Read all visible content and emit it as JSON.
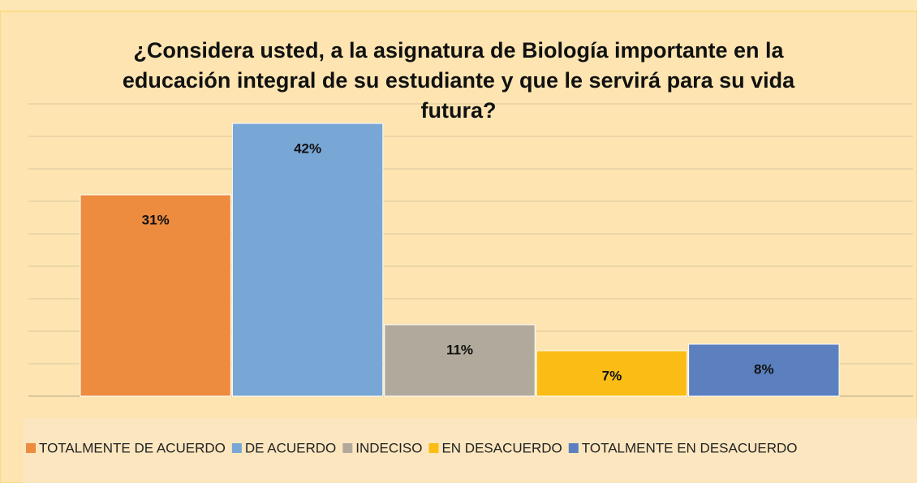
{
  "chart_data": {
    "type": "bar",
    "title": "¿Considera usted, a la asignatura de Biología importante en la educación integral de su estudiante y que le servirá para su vida futura?",
    "series": [
      {
        "name": "TOTALMENTE DE ACUERDO",
        "color": "#ed8b3f",
        "values": [
          31
        ],
        "value_labels": [
          "31%"
        ]
      },
      {
        "name": "DE ACUERDO",
        "color": "#78a7d5",
        "values": [
          42
        ],
        "value_labels": [
          "42%"
        ]
      },
      {
        "name": "INDECISO",
        "color": "#b1aa9c",
        "values": [
          11
        ],
        "value_labels": [
          "11%"
        ]
      },
      {
        "name": "EN DESACUERDO",
        "color": "#fbbd15",
        "values": [
          7
        ],
        "value_labels": [
          "7%"
        ]
      },
      {
        "name": "TOTALMENTE EN DESACUERDO",
        "color": "#5c80bf",
        "values": [
          8
        ],
        "value_labels": [
          "8%"
        ]
      }
    ],
    "ylim": [
      0,
      45
    ],
    "yticks": [
      0,
      5,
      10,
      15,
      20,
      25,
      30,
      35,
      40,
      45
    ],
    "grid": true,
    "legend": "bottom"
  }
}
